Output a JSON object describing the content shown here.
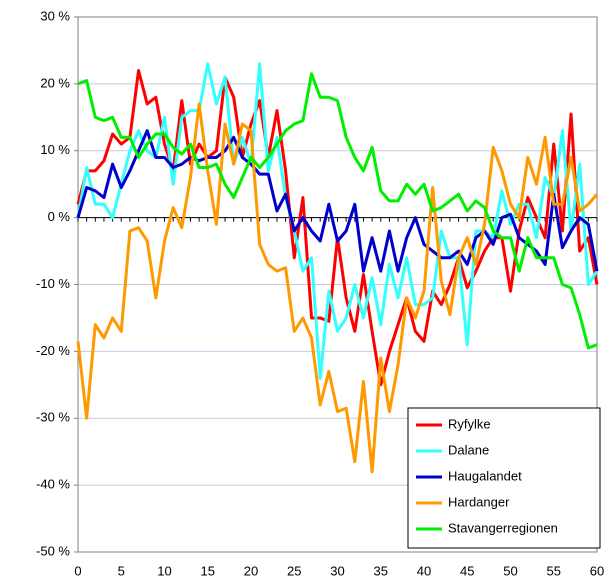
{
  "chart_data": {
    "type": "line",
    "x": [
      0,
      1,
      2,
      3,
      4,
      5,
      6,
      7,
      8,
      9,
      10,
      11,
      12,
      13,
      14,
      15,
      16,
      17,
      18,
      19,
      20,
      21,
      22,
      23,
      24,
      25,
      26,
      27,
      28,
      29,
      30,
      31,
      32,
      33,
      34,
      35,
      36,
      37,
      38,
      39,
      40,
      41,
      42,
      43,
      44,
      45,
      46,
      47,
      48,
      49,
      50,
      51,
      52,
      53,
      54,
      55,
      56,
      57,
      58,
      59,
      60
    ],
    "xlim": [
      0,
      60
    ],
    "xticks": [
      0,
      5,
      10,
      15,
      20,
      25,
      30,
      35,
      40,
      45,
      50,
      55,
      60
    ],
    "ylim": [
      -50,
      30
    ],
    "yticks": [
      {
        "value": -50,
        "label": "-50 %"
      },
      {
        "value": -40,
        "label": "-40 %"
      },
      {
        "value": -30,
        "label": "-30 %"
      },
      {
        "value": -20,
        "label": "-20 %"
      },
      {
        "value": -10,
        "label": "-10 %"
      },
      {
        "value": 0,
        "label": "0 %"
      },
      {
        "value": 10,
        "label": "10 %"
      },
      {
        "value": 20,
        "label": "20 %"
      },
      {
        "value": 30,
        "label": "30 %"
      }
    ],
    "grid": true,
    "legend": "lower right",
    "series": [
      {
        "name": "Ryfylke",
        "color": "#ff0000",
        "values": [
          2,
          7,
          7,
          8.5,
          12.5,
          11,
          12,
          22,
          17,
          18,
          11,
          7,
          17.5,
          8,
          11,
          9,
          10,
          21,
          18,
          9,
          14,
          17.5,
          9,
          16,
          7,
          -6,
          3,
          -15,
          -15,
          -15.5,
          -3,
          -12,
          -17,
          -8.5,
          -17,
          -25,
          -20,
          -16,
          -12,
          -17,
          -18.5,
          -11,
          -13,
          -10,
          -6,
          -10.5,
          -8,
          -5,
          -3,
          -3,
          -11,
          -2,
          3,
          0,
          -3,
          11,
          -2,
          15.5,
          -5,
          -3,
          -10
        ]
      },
      {
        "name": "Dalane",
        "color": "#33ffff",
        "values": [
          0,
          7.5,
          2,
          2,
          0,
          5,
          10,
          13,
          10,
          9,
          15,
          5,
          15,
          16,
          16,
          23,
          17,
          21,
          8,
          12,
          8,
          23,
          7,
          12,
          3,
          -2,
          -8,
          -6,
          -24,
          -11,
          -17,
          -15,
          -10,
          -15,
          -9,
          -16,
          -7,
          -12,
          -6,
          -13,
          -13,
          -12,
          -2,
          -6,
          -6,
          -19,
          -2,
          -2,
          -3,
          4,
          -1,
          2,
          2,
          -3,
          6,
          3,
          13,
          -2,
          8,
          -10,
          -8
        ]
      },
      {
        "name": "Haugalandet",
        "color": "#0000cc",
        "values": [
          0,
          4.5,
          4,
          3,
          8,
          4.5,
          7,
          10,
          13,
          9,
          9,
          7.5,
          8,
          9,
          8.5,
          9,
          9,
          10,
          12,
          9,
          8,
          6.5,
          6.5,
          1,
          3.5,
          -2,
          0,
          -2,
          -3.5,
          2,
          -3.5,
          -2,
          2,
          -8,
          -3,
          -8,
          -2,
          -8,
          -3,
          0,
          -4,
          -5,
          -6,
          -6,
          -5,
          -7,
          -3,
          -2,
          -4,
          0,
          0.5,
          -3,
          -4,
          -5,
          -7,
          3.5,
          -4.5,
          -2,
          0,
          -1,
          -8
        ]
      },
      {
        "name": "Hardanger",
        "color": "#ff9900",
        "values": [
          -18.5,
          -30,
          -16,
          -18,
          -15,
          -17,
          -2,
          -1.5,
          -3.5,
          -12,
          -3.5,
          1.5,
          -1.5,
          6,
          17,
          7,
          -1,
          14,
          8,
          14,
          13,
          -4,
          -7,
          -8,
          -7.5,
          -17,
          -15,
          -18,
          -28,
          -23,
          -29,
          -28.5,
          -36.5,
          -24.5,
          -38,
          -21,
          -29,
          -22,
          -12,
          -15,
          -11,
          4.5,
          -9.5,
          -14.5,
          -6,
          -3,
          -7,
          -1,
          10.5,
          7,
          2,
          0,
          9,
          5,
          12,
          2,
          2,
          9,
          1,
          2,
          3.5
        ]
      },
      {
        "name": "Stavangerregionen",
        "color": "#00ee00",
        "values": [
          20,
          20.5,
          15,
          14.5,
          15,
          12,
          12,
          9,
          11,
          12.5,
          12.5,
          10.5,
          9.5,
          11,
          7.5,
          7.5,
          8,
          5,
          3,
          6,
          9,
          7.5,
          9,
          11,
          13,
          14,
          14.5,
          21.5,
          18,
          18,
          17.5,
          12,
          9,
          7,
          10.5,
          4,
          2.5,
          2.5,
          5,
          3.5,
          5,
          1,
          1.5,
          2.5,
          3.5,
          1,
          2.5,
          1.5,
          -2,
          -3,
          -3,
          -8,
          -3,
          -6,
          -6,
          -6,
          -10,
          -10.5,
          -14.5,
          -19.5,
          -19
        ]
      }
    ]
  }
}
